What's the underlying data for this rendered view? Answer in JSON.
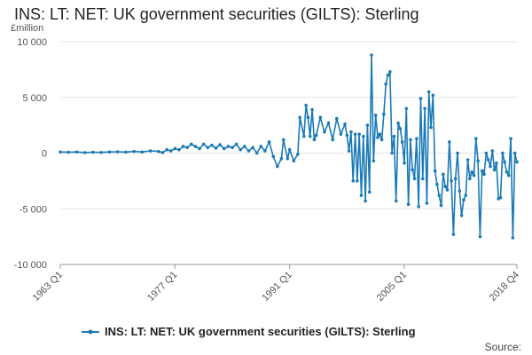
{
  "title": "INS: LT: NET: UK government securities (GILTS): Sterling",
  "source_label": "Source:",
  "colors": {
    "series": "#1a7ab7",
    "grid": "#e3e3e3",
    "axis": "#999999"
  },
  "chart_data": {
    "type": "line",
    "title": "INS: LT: NET: UK government securities (GILTS): Sterling",
    "ylabel": "£million",
    "xlabel": "",
    "ylim": [
      -10000,
      10000
    ],
    "yticks": [
      10000,
      5000,
      0,
      -5000,
      -10000
    ],
    "ytick_labels": [
      "10 000",
      "5 000",
      "0",
      "-5 000",
      "-10 000"
    ],
    "xlim": [
      "1963 Q1",
      "2018 Q4"
    ],
    "xticks": [
      "1963 Q1",
      "1977 Q1",
      "1991 Q1",
      "2005 Q1",
      "2018 Q4"
    ],
    "grid": true,
    "legend_position": "bottom",
    "series": [
      {
        "name": "INS: LT: NET: UK government securities (GILTS): Sterling",
        "color": "#1a7ab7",
        "points": [
          [
            "1963 Q1",
            100
          ],
          [
            "1964 Q1",
            80
          ],
          [
            "1965 Q1",
            100
          ],
          [
            "1966 Q1",
            50
          ],
          [
            "1967 Q1",
            80
          ],
          [
            "1968 Q1",
            60
          ],
          [
            "1969 Q1",
            100
          ],
          [
            "1970 Q1",
            120
          ],
          [
            "1971 Q1",
            90
          ],
          [
            "1972 Q1",
            150
          ],
          [
            "1973 Q1",
            100
          ],
          [
            "1974 Q1",
            200
          ],
          [
            "1975 Q1",
            150
          ],
          [
            "1975 Q3",
            50
          ],
          [
            "1976 Q1",
            300
          ],
          [
            "1976 Q3",
            200
          ],
          [
            "1977 Q1",
            400
          ],
          [
            "1977 Q3",
            300
          ],
          [
            "1978 Q1",
            600
          ],
          [
            "1978 Q3",
            500
          ],
          [
            "1979 Q1",
            800
          ],
          [
            "1979 Q3",
            600
          ],
          [
            "1980 Q1",
            400
          ],
          [
            "1980 Q3",
            800
          ],
          [
            "1981 Q1",
            500
          ],
          [
            "1981 Q3",
            700
          ],
          [
            "1982 Q1",
            450
          ],
          [
            "1982 Q3",
            750
          ],
          [
            "1983 Q1",
            400
          ],
          [
            "1983 Q3",
            600
          ],
          [
            "1984 Q1",
            500
          ],
          [
            "1984 Q3",
            800
          ],
          [
            "1985 Q1",
            300
          ],
          [
            "1985 Q3",
            600
          ],
          [
            "1986 Q1",
            200
          ],
          [
            "1986 Q3",
            500
          ],
          [
            "1987 Q1",
            0
          ],
          [
            "1987 Q3",
            600
          ],
          [
            "1988 Q1",
            200
          ],
          [
            "1988 Q3",
            1000
          ],
          [
            "1989 Q1",
            -300
          ],
          [
            "1989 Q3",
            -1200
          ],
          [
            "1990 Q1",
            -500
          ],
          [
            "1990 Q2",
            1200
          ],
          [
            "1990 Q4",
            -500
          ],
          [
            "1991 Q1",
            300
          ],
          [
            "1991 Q3",
            -700
          ],
          [
            "1992 Q1",
            -100
          ],
          [
            "1992 Q2",
            3200
          ],
          [
            "1992 Q4",
            1500
          ],
          [
            "1993 Q1",
            4300
          ],
          [
            "1993 Q2",
            3200
          ],
          [
            "1993 Q3",
            1500
          ],
          [
            "1993 Q4",
            3900
          ],
          [
            "1994 Q1",
            1200
          ],
          [
            "1994 Q2",
            1600
          ],
          [
            "1994 Q4",
            3200
          ],
          [
            "1995 Q2",
            1900
          ],
          [
            "1995 Q4",
            2700
          ],
          [
            "1996 Q2",
            1200
          ],
          [
            "1996 Q4",
            3100
          ],
          [
            "1997 Q2",
            1700
          ],
          [
            "1997 Q4",
            2600
          ],
          [
            "1998 Q1",
            1600
          ],
          [
            "1998 Q2",
            200
          ],
          [
            "1998 Q3",
            1900
          ],
          [
            "1998 Q4",
            -2500
          ],
          [
            "1999 Q1",
            1700
          ],
          [
            "1999 Q2",
            -2500
          ],
          [
            "1999 Q3",
            1700
          ],
          [
            "1999 Q4",
            -3800
          ],
          [
            "2000 Q1",
            1500
          ],
          [
            "2000 Q2",
            -4300
          ],
          [
            "2000 Q3",
            2500
          ],
          [
            "2000 Q4",
            -3500
          ],
          [
            "2001 Q1",
            8800
          ],
          [
            "2001 Q2",
            -700
          ],
          [
            "2001 Q3",
            3400
          ],
          [
            "2001 Q4",
            1400
          ],
          [
            "2002 Q1",
            1700
          ],
          [
            "2002 Q2",
            1200
          ],
          [
            "2002 Q3",
            3500
          ],
          [
            "2002 Q4",
            6200
          ],
          [
            "2003 Q1",
            7000
          ],
          [
            "2003 Q2",
            7300
          ],
          [
            "2003 Q3",
            0
          ],
          [
            "2003 Q4",
            1500
          ],
          [
            "2004 Q1",
            -4300
          ],
          [
            "2004 Q2",
            2700
          ],
          [
            "2004 Q3",
            2200
          ],
          [
            "2004 Q4",
            1000
          ],
          [
            "2005 Q1",
            -900
          ],
          [
            "2005 Q2",
            4000
          ],
          [
            "2005 Q3",
            -4600
          ],
          [
            "2005 Q4",
            1200
          ],
          [
            "2006 Q1",
            -1500
          ],
          [
            "2006 Q2",
            -2300
          ],
          [
            "2006 Q3",
            1300
          ],
          [
            "2006 Q4",
            -4800
          ],
          [
            "2007 Q1",
            4900
          ],
          [
            "2007 Q2",
            -2300
          ],
          [
            "2007 Q3",
            4000
          ],
          [
            "2007 Q4",
            -4500
          ],
          [
            "2008 Q1",
            5500
          ],
          [
            "2008 Q2",
            2300
          ],
          [
            "2008 Q3",
            5200
          ],
          [
            "2008 Q4",
            -1600
          ],
          [
            "2009 Q1",
            -2800
          ],
          [
            "2009 Q2",
            -3800
          ],
          [
            "2009 Q3",
            -4700
          ],
          [
            "2009 Q4",
            -1900
          ],
          [
            "2010 Q1",
            -3000
          ],
          [
            "2010 Q2",
            -3300
          ],
          [
            "2010 Q3",
            1000
          ],
          [
            "2010 Q4",
            -2500
          ],
          [
            "2011 Q1",
            -7300
          ],
          [
            "2011 Q2",
            -2300
          ],
          [
            "2011 Q3",
            0
          ],
          [
            "2011 Q4",
            -3400
          ],
          [
            "2012 Q1",
            -5600
          ],
          [
            "2012 Q2",
            -4200
          ],
          [
            "2012 Q3",
            -3800
          ],
          [
            "2012 Q4",
            -600
          ],
          [
            "2013 Q1",
            -2300
          ],
          [
            "2013 Q2",
            -1700
          ],
          [
            "2013 Q3",
            -2000
          ],
          [
            "2013 Q4",
            1300
          ],
          [
            "2014 Q1",
            -700
          ],
          [
            "2014 Q2",
            -7500
          ],
          [
            "2014 Q3",
            -1600
          ],
          [
            "2014 Q4",
            -1900
          ],
          [
            "2015 Q1",
            0
          ],
          [
            "2015 Q2",
            -600
          ],
          [
            "2015 Q3",
            -1200
          ],
          [
            "2015 Q4",
            200
          ],
          [
            "2016 Q1",
            -1500
          ],
          [
            "2016 Q2",
            -900
          ],
          [
            "2016 Q3",
            -4100
          ],
          [
            "2016 Q4",
            -4000
          ],
          [
            "2017 Q1",
            0
          ],
          [
            "2017 Q2",
            -800
          ],
          [
            "2017 Q3",
            -1700
          ],
          [
            "2017 Q4",
            -2000
          ],
          [
            "2018 Q1",
            1300
          ],
          [
            "2018 Q2",
            -7600
          ],
          [
            "2018 Q3",
            0
          ],
          [
            "2018 Q4",
            -800
          ]
        ]
      }
    ]
  }
}
